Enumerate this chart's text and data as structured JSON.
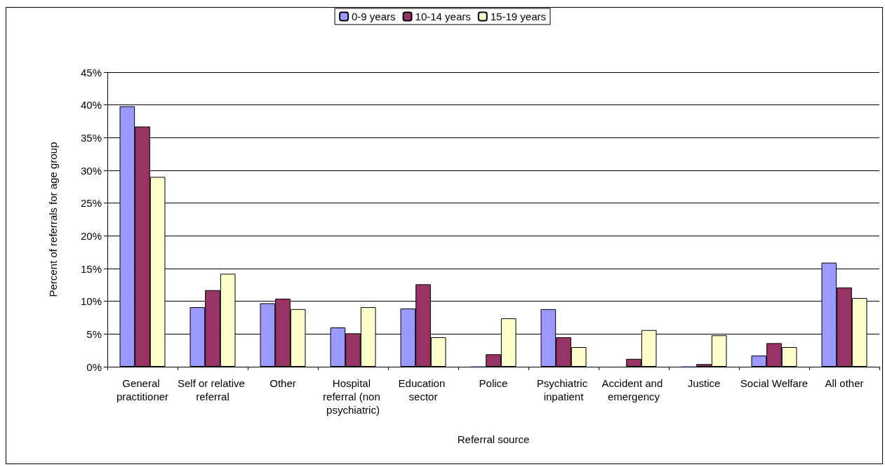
{
  "chart_data": {
    "type": "bar",
    "xlabel": "Referral source",
    "ylabel": "Percent of referrals for age group",
    "categories": [
      "General practitioner",
      "Self or relative referral",
      "Other",
      "Hospital referral (non psychiatric)",
      "Education sector",
      "Police",
      "Psychiatric inpatient",
      "Accident and emergency",
      "Justice",
      "Social Welfare",
      "All other"
    ],
    "series": [
      {
        "name": "0-9 years",
        "color": "#9999ff",
        "values": [
          39.8,
          9.1,
          9.7,
          6.0,
          8.9,
          0.1,
          8.8,
          0,
          0.1,
          1.7,
          15.9
        ]
      },
      {
        "name": "10-14 years",
        "color": "#993366",
        "values": [
          36.7,
          11.7,
          10.4,
          5.1,
          12.6,
          1.9,
          4.5,
          1.2,
          0.4,
          3.6,
          12.1
        ]
      },
      {
        "name": "15-19 years",
        "color": "#ffffcc",
        "values": [
          29.0,
          14.2,
          8.8,
          9.1,
          4.5,
          7.4,
          3.0,
          5.6,
          4.8,
          3.0,
          10.5
        ]
      }
    ],
    "ylim": [
      0,
      45
    ],
    "yticks": [
      {
        "value": 0,
        "label": "0%"
      },
      {
        "value": 5,
        "label": "5%"
      },
      {
        "value": 10,
        "label": "10%"
      },
      {
        "value": 15,
        "label": "15%"
      },
      {
        "value": 20,
        "label": "20%"
      },
      {
        "value": 25,
        "label": "25%"
      },
      {
        "value": 30,
        "label": "30%"
      },
      {
        "value": 35,
        "label": "35%"
      },
      {
        "value": 40,
        "label": "40%"
      },
      {
        "value": 45,
        "label": "45%"
      }
    ],
    "grid": "y",
    "legend": "top"
  }
}
